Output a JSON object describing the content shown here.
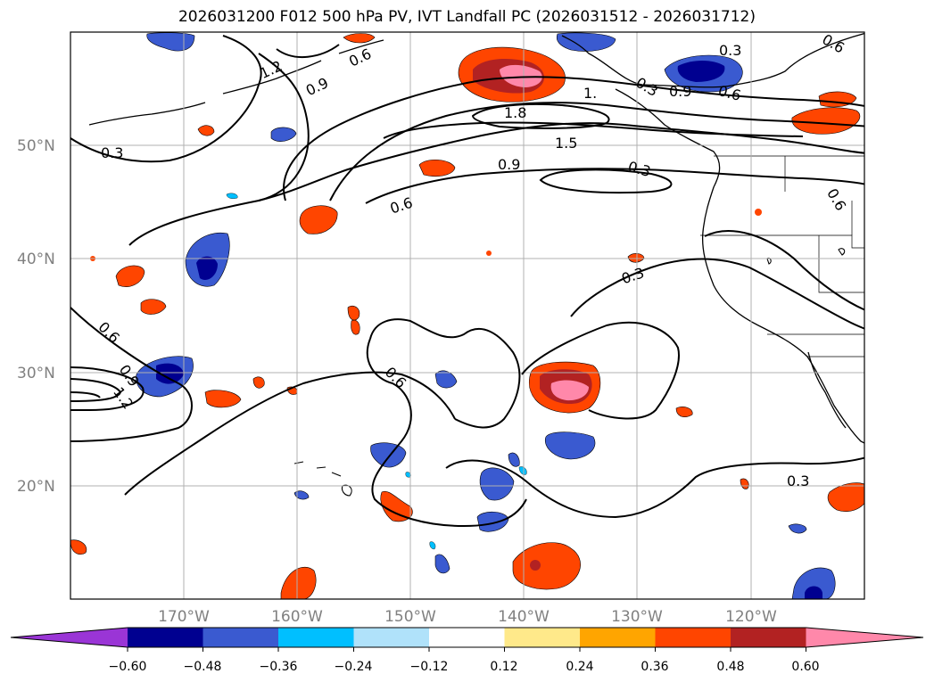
{
  "title": "2026031200 F012 500 hPa PV, IVT Landfall PC (2026031512 - 2026031712)",
  "axes": {
    "lon_ticks": [
      "170°W",
      "160°W",
      "150°W",
      "140°W",
      "130°W",
      "120°W"
    ],
    "lat_ticks": [
      "50°N",
      "40°N",
      "30°N",
      "20°N"
    ],
    "lon_range": [
      -180,
      -110
    ],
    "lat_range": [
      10,
      60
    ],
    "grid": true
  },
  "colorbar": {
    "ticks": [
      "−0.60",
      "−0.48",
      "−0.36",
      "−0.24",
      "−0.12",
      "0.12",
      "0.24",
      "0.36",
      "0.48",
      "0.60"
    ],
    "colors": [
      "#9a35d6",
      "#000090",
      "#3a5ad0",
      "#00bfff",
      "#b0e2fa",
      "#ffffff",
      "#ffe98a",
      "#ffa500",
      "#ff4500",
      "#b22222",
      "#ff88aa"
    ],
    "extend": "both"
  },
  "contour_labels": [
    "1.2",
    "0.9",
    "0.3",
    "1.8",
    "1.5",
    "0.9",
    "0.3",
    "0.6",
    "0.6",
    "0.3",
    "0.6",
    "0.9",
    "1.2",
    "0.6",
    "0.3",
    "1.",
    "0.9",
    "0.6",
    "0.6",
    "0.3",
    "0.6",
    "0.3"
  ]
}
